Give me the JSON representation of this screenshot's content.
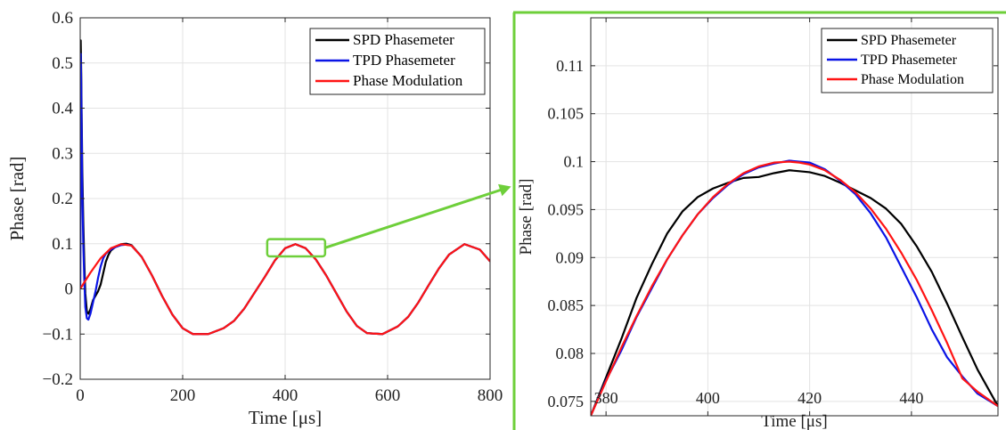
{
  "colors": {
    "spd": "#000000",
    "tpd": "#0a14e6",
    "mod": "#ff1414",
    "zoom_frame": "#6ecf3a",
    "axis": "#262626",
    "grid": "#e3e3e3"
  },
  "chart_data": [
    {
      "type": "line",
      "title": "",
      "xlabel": "Time [μs]",
      "ylabel": "Phase [rad]",
      "xlim": [
        0,
        800
      ],
      "ylim": [
        -0.2,
        0.6
      ],
      "xticks": [
        0,
        200,
        400,
        600,
        800
      ],
      "xtick_labels": [
        "0",
        "200",
        "400",
        "600",
        "800"
      ],
      "yticks": [
        -0.2,
        -0.1,
        0,
        0.1,
        0.2,
        0.3,
        0.4,
        0.5,
        0.6
      ],
      "ytick_labels": [
        "−0.2",
        "−0.1",
        "0",
        "0.1",
        "0.2",
        "0.3",
        "0.4",
        "0.5",
        "0.6"
      ],
      "grid": true,
      "legend": "top-right",
      "series": [
        {
          "name": "SPD Phasemeter",
          "x": [
            0,
            1,
            2,
            3,
            4,
            6,
            8,
            10,
            13,
            16,
            20,
            25,
            30,
            35,
            40,
            45,
            50,
            55,
            60,
            70,
            80,
            90,
            100,
            120,
            140,
            160,
            180,
            200,
            220,
            250,
            280,
            300,
            320,
            340,
            360,
            380,
            400,
            420,
            440,
            460,
            480,
            500,
            520,
            540,
            560,
            590,
            620,
            640,
            660,
            680,
            700,
            720,
            750,
            780,
            800
          ],
          "y": [
            0.0,
            0.55,
            0.48,
            0.37,
            0.27,
            0.15,
            0.06,
            -0.01,
            -0.05,
            -0.055,
            -0.045,
            -0.025,
            -0.015,
            -0.005,
            0.01,
            0.035,
            0.06,
            0.075,
            0.085,
            0.094,
            0.099,
            0.1,
            0.097,
            0.071,
            0.03,
            -0.016,
            -0.057,
            -0.087,
            -0.1,
            -0.1,
            -0.087,
            -0.071,
            -0.044,
            -0.009,
            0.026,
            0.063,
            0.09,
            0.099,
            0.09,
            0.065,
            0.03,
            -0.01,
            -0.05,
            -0.082,
            -0.098,
            -0.1,
            -0.083,
            -0.062,
            -0.03,
            0.008,
            0.045,
            0.076,
            0.099,
            0.087,
            0.061
          ]
        },
        {
          "name": "TPD Phasemeter",
          "x": [
            0,
            1,
            2,
            3,
            4,
            6,
            8,
            10,
            13,
            16,
            20,
            25,
            30,
            35,
            40,
            45,
            50,
            55,
            60,
            70,
            80,
            90,
            100,
            120,
            140,
            160,
            180,
            200,
            220,
            250,
            280,
            300,
            320,
            340,
            360,
            380,
            400,
            420,
            440,
            460,
            480,
            500,
            520,
            540,
            560,
            590,
            620,
            640,
            660,
            680,
            700,
            720,
            750,
            780,
            800
          ],
          "y": [
            0.0,
            0.52,
            0.45,
            0.33,
            0.22,
            0.1,
            0.02,
            -0.04,
            -0.065,
            -0.068,
            -0.055,
            -0.03,
            -0.005,
            0.025,
            0.05,
            0.068,
            0.078,
            0.083,
            0.087,
            0.093,
            0.097,
            0.098,
            0.096,
            0.071,
            0.03,
            -0.016,
            -0.057,
            -0.087,
            -0.1,
            -0.1,
            -0.087,
            -0.071,
            -0.044,
            -0.009,
            0.026,
            0.063,
            0.09,
            0.099,
            0.09,
            0.065,
            0.03,
            -0.01,
            -0.05,
            -0.082,
            -0.098,
            -0.1,
            -0.083,
            -0.062,
            -0.03,
            0.008,
            0.045,
            0.076,
            0.099,
            0.087,
            0.061
          ]
        },
        {
          "name": "Phase Modulation",
          "x": [
            0,
            20,
            40,
            60,
            80,
            100,
            120,
            140,
            160,
            180,
            200,
            220,
            250,
            280,
            300,
            320,
            340,
            360,
            380,
            400,
            420,
            440,
            460,
            480,
            500,
            520,
            540,
            560,
            590,
            620,
            640,
            660,
            680,
            700,
            720,
            750,
            780,
            800
          ],
          "y": [
            0.0,
            0.036,
            0.068,
            0.09,
            0.099,
            0.096,
            0.071,
            0.03,
            -0.016,
            -0.057,
            -0.087,
            -0.1,
            -0.1,
            -0.087,
            -0.071,
            -0.044,
            -0.009,
            0.026,
            0.063,
            0.09,
            0.099,
            0.09,
            0.065,
            0.03,
            -0.01,
            -0.05,
            -0.082,
            -0.098,
            -0.1,
            -0.083,
            -0.062,
            -0.03,
            0.008,
            0.045,
            0.076,
            0.099,
            0.087,
            0.061
          ]
        }
      ],
      "zoom_box": {
        "x": [
          365,
          478
        ],
        "y": [
          0.072,
          0.11
        ]
      }
    },
    {
      "type": "line",
      "title": "",
      "xlabel": "Time [μs]",
      "ylabel": "Phase [rad]",
      "xlim": [
        377,
        457
      ],
      "ylim": [
        0.0735,
        0.115
      ],
      "xticks": [
        380,
        400,
        420,
        440
      ],
      "xtick_labels": [
        "380",
        "400",
        "420",
        "440"
      ],
      "yticks": [
        0.075,
        0.08,
        0.085,
        0.09,
        0.095,
        0.1,
        0.105,
        0.11
      ],
      "ytick_labels": [
        "0.075",
        "0.08",
        "0.085",
        "0.09",
        "0.095",
        "0.1",
        "0.105",
        "0.11"
      ],
      "grid": true,
      "legend": "top-right",
      "series": [
        {
          "name": "SPD Phasemeter",
          "x": [
            377,
            380,
            383,
            386,
            389,
            392,
            395,
            398,
            401,
            404,
            407,
            410,
            413,
            416,
            418,
            420,
            423,
            426,
            429,
            432,
            435,
            438,
            441,
            444,
            447,
            450,
            453,
            457
          ],
          "y": [
            0.0735,
            0.0775,
            0.0815,
            0.0858,
            0.0893,
            0.0925,
            0.0948,
            0.0963,
            0.0972,
            0.0978,
            0.0983,
            0.0984,
            0.0988,
            0.0991,
            0.099,
            0.0989,
            0.0985,
            0.0978,
            0.097,
            0.0962,
            0.0951,
            0.0935,
            0.0912,
            0.0885,
            0.0852,
            0.0817,
            0.0783,
            0.0745
          ]
        },
        {
          "name": "TPD Phasemeter",
          "x": [
            377,
            380,
            383,
            386,
            389,
            392,
            395,
            398,
            401,
            404,
            407,
            410,
            413,
            416,
            418,
            420,
            423,
            426,
            429,
            432,
            435,
            438,
            441,
            444,
            447,
            450,
            453,
            457
          ],
          "y": [
            0.0735,
            0.0772,
            0.0803,
            0.0838,
            0.0868,
            0.0898,
            0.0923,
            0.0945,
            0.0962,
            0.0976,
            0.0987,
            0.0994,
            0.0998,
            0.1001,
            0.1,
            0.0999,
            0.0992,
            0.098,
            0.0966,
            0.0946,
            0.0921,
            0.089,
            0.0859,
            0.0825,
            0.0796,
            0.0776,
            0.0758,
            0.0745
          ]
        },
        {
          "name": "Phase Modulation",
          "x": [
            377,
            380,
            383,
            386,
            389,
            392,
            395,
            398,
            401,
            404,
            407,
            410,
            413,
            416,
            418,
            420,
            423,
            426,
            429,
            432,
            435,
            438,
            441,
            444,
            447,
            450,
            453,
            457
          ],
          "y": [
            0.0735,
            0.0771,
            0.0806,
            0.0839,
            0.087,
            0.0898,
            0.0923,
            0.0945,
            0.0963,
            0.0977,
            0.0988,
            0.0995,
            0.0999,
            0.1,
            0.0999,
            0.0997,
            0.0991,
            0.0981,
            0.0968,
            0.0951,
            0.093,
            0.0905,
            0.0877,
            0.0845,
            0.0811,
            0.0774,
            0.076,
            0.0745
          ]
        }
      ]
    }
  ]
}
